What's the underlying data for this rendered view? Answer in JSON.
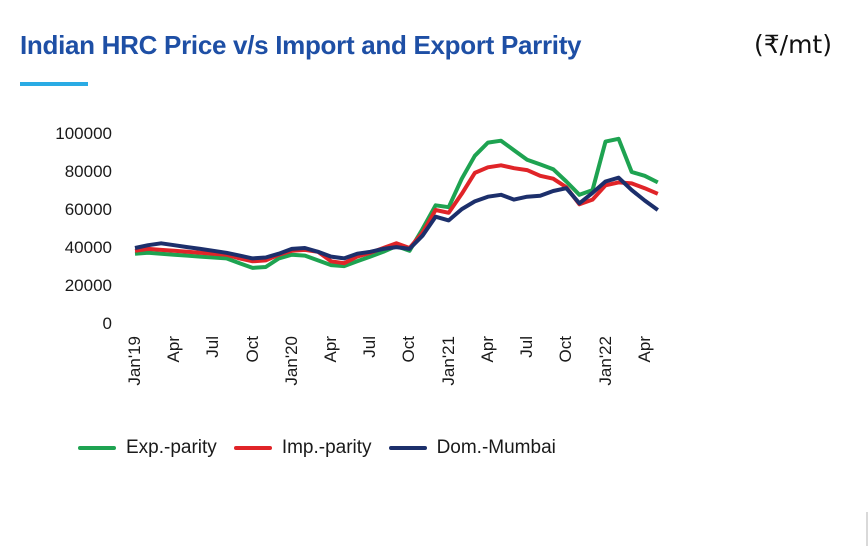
{
  "header": {
    "title": "Indian HRC Price v/s Import and Export Parrity",
    "unit": "(₹/mt)"
  },
  "accent": {
    "title_color": "#1e4fa5",
    "underline_color": "#2aabe4",
    "axis_text_color": "#1a1a1a"
  },
  "chart_data": {
    "type": "line",
    "title": "Indian HRC Price v/s Import and Export Parrity",
    "unit": "₹/mt",
    "x_frequency": "monthly from Jan 2019 to May 2022, tick label every 3 months",
    "x_tick_labels": [
      "Jan'19",
      "Apr",
      "Jul",
      "Oct",
      "Jan'20",
      "Apr",
      "Jul",
      "Oct",
      "Jan'21",
      "Apr",
      "Jul",
      "Oct",
      "Jan'22",
      "Apr"
    ],
    "y_tick_labels": [
      "100000",
      "80000",
      "60000",
      "40000",
      "20000",
      "0"
    ],
    "y_ticks": [
      100000,
      80000,
      60000,
      40000,
      20000,
      0
    ],
    "ylim": [
      0,
      100000
    ],
    "grid": false,
    "legend_position": "bottom",
    "series": [
      {
        "name": "Exp.-parity",
        "color": "#1ea351",
        "values": [
          37000,
          37500,
          37000,
          36500,
          36000,
          35500,
          35000,
          34500,
          32000,
          29500,
          30000,
          34500,
          36500,
          36000,
          33500,
          31000,
          30500,
          33000,
          35500,
          38000,
          41000,
          38500,
          50000,
          62500,
          61500,
          76500,
          88500,
          95500,
          96500,
          91500,
          86500,
          84000,
          81500,
          75000,
          68000,
          70500,
          96000,
          97500,
          80000,
          78000,
          74500
        ]
      },
      {
        "name": "Imp.-parity",
        "color": "#e02428",
        "values": [
          38500,
          39500,
          39000,
          38500,
          38000,
          37500,
          37000,
          36500,
          34500,
          33000,
          33500,
          36500,
          38500,
          39000,
          38000,
          33000,
          32000,
          35500,
          37500,
          40000,
          42500,
          40000,
          48000,
          60000,
          58500,
          68500,
          79500,
          82500,
          83500,
          82000,
          81000,
          78000,
          76500,
          72000,
          63000,
          65500,
          73000,
          74500,
          74000,
          71500,
          68500
        ]
      },
      {
        "name": "Dom.-Mumbai",
        "color": "#1c2f6b",
        "values": [
          40000,
          41500,
          42500,
          41500,
          40500,
          39500,
          38500,
          37500,
          36000,
          34500,
          35000,
          37000,
          39500,
          40000,
          38000,
          35500,
          34500,
          37000,
          38000,
          39500,
          40500,
          39500,
          46500,
          56500,
          54500,
          60500,
          64500,
          67000,
          68000,
          65500,
          67000,
          67500,
          70000,
          71500,
          63500,
          69000,
          75000,
          77000,
          70500,
          65000,
          60000
        ]
      }
    ]
  }
}
